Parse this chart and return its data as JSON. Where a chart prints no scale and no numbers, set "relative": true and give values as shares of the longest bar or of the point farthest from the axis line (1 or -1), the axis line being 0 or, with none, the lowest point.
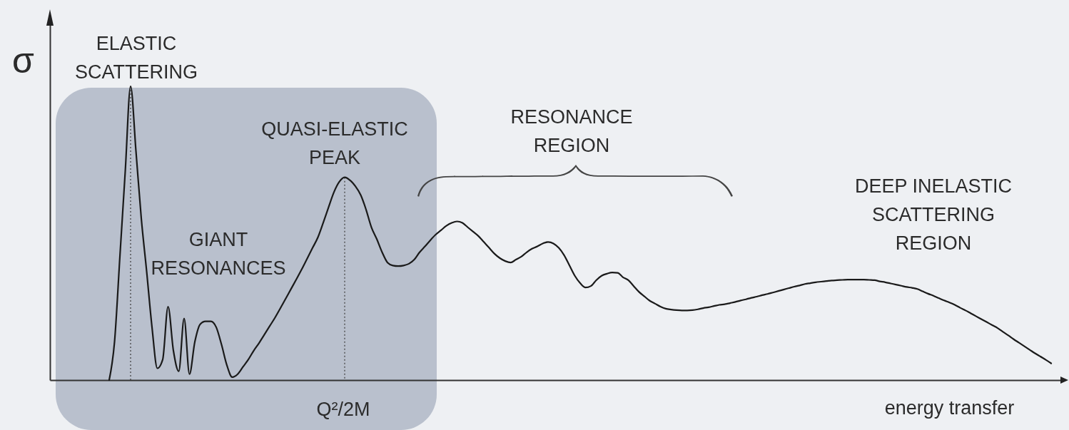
{
  "chart_data": {
    "type": "line",
    "xlabel": "energy transfer",
    "ylabel": "σ",
    "relative": true,
    "color": "#1a1a1a",
    "annotations": [
      "ELASTIC\nSCATTERING",
      "GIANT\nRESONANCES",
      "QUASI-ELASTIC\nPEAK",
      "RESONANCE\nREGION",
      "DEEP INELASTIC\nSCATTERING\nREGION",
      "Q²/2M"
    ],
    "categories": [
      null,
      null,
      null,
      null,
      null,
      null,
      null,
      null,
      null,
      null,
      null,
      null,
      null,
      null,
      null,
      null,
      null,
      null,
      null,
      null,
      null,
      null,
      null,
      null,
      null,
      null,
      null,
      null,
      null,
      null,
      null,
      null,
      null,
      null,
      null,
      null,
      null,
      null,
      null,
      null,
      null,
      null,
      null,
      null,
      null,
      null,
      null,
      null,
      null,
      null,
      null,
      null,
      null,
      null,
      null,
      null,
      null,
      null,
      null,
      null,
      null,
      null,
      null,
      null,
      null,
      null,
      null,
      null,
      null,
      null,
      null,
      null,
      null,
      null,
      null,
      null,
      null,
      null,
      null,
      null,
      null,
      null,
      null,
      null,
      null,
      null,
      null,
      null,
      null,
      null,
      null,
      null,
      null,
      null,
      null,
      null,
      null,
      null,
      null,
      null,
      null,
      null,
      null,
      null,
      null,
      null,
      null,
      null,
      null,
      null,
      null,
      null,
      null,
      null,
      null,
      null,
      null,
      null,
      null,
      null,
      null,
      null,
      null,
      null,
      null,
      null,
      null,
      null,
      null,
      null,
      null,
      null,
      null,
      null,
      null,
      null,
      null,
      null,
      null,
      null,
      null,
      null,
      null,
      null,
      null,
      null,
      null,
      null,
      null,
      null,
      null,
      null,
      null,
      null,
      null,
      null,
      null,
      null,
      null,
      null,
      null,
      null,
      null,
      null,
      null,
      null,
      null,
      null,
      null,
      null,
      null,
      null,
      null,
      null,
      null,
      null,
      null
    ],
    "values": [
      0,
      0.13,
      0.42,
      0.71,
      1,
      0.78,
      0.55,
      0.37,
      0.18,
      0.04,
      0.07,
      0.25,
      0.1,
      0.03,
      0.21,
      0.02,
      0.13,
      0.19,
      0.2,
      0.2,
      0.18,
      0.12,
      0.05,
      0.01,
      0.02,
      0.045,
      0.07,
      0.1,
      0.126,
      0.155,
      0.184,
      0.213,
      0.245,
      0.278,
      0.311,
      0.344,
      0.378,
      0.414,
      0.45,
      0.486,
      0.536,
      0.589,
      0.64,
      0.675,
      0.69,
      0.68,
      0.66,
      0.63,
      0.58,
      0.52,
      0.48,
      0.435,
      0.4,
      0.39,
      0.388,
      0.39,
      0.396,
      0.41,
      0.435,
      0.455,
      0.476,
      0.495,
      0.51,
      0.525,
      0.535,
      0.54,
      0.535,
      0.52,
      0.505,
      0.49,
      0.47,
      0.45,
      0.43,
      0.415,
      0.405,
      0.4,
      0.41,
      0.42,
      0.435,
      0.447,
      0.455,
      0.465,
      0.47,
      0.465,
      0.45,
      0.425,
      0.39,
      0.355,
      0.33,
      0.315,
      0.32,
      0.34,
      0.355,
      0.362,
      0.366,
      0.365,
      0.35,
      0.34,
      0.32,
      0.3,
      0.285,
      0.27,
      0.26,
      0.25,
      0.243,
      0.24,
      0.238,
      0.237,
      0.237,
      0.238,
      0.241,
      0.245,
      0.248,
      0.252,
      0.256,
      0.258,
      0.262,
      0.266,
      0.271,
      0.275,
      0.28,
      0.284,
      0.289,
      0.293,
      0.298,
      0.303,
      0.308,
      0.313,
      0.318,
      0.322,
      0.327,
      0.33,
      0.333,
      0.335,
      0.337,
      0.339,
      0.34,
      0.341,
      0.342,
      0.342,
      0.342,
      0.342,
      0.341,
      0.34,
      0.336,
      0.333,
      0.329,
      0.325,
      0.321,
      0.317,
      0.314,
      0.31,
      0.302,
      0.294,
      0.287,
      0.279,
      0.271,
      0.264,
      0.256,
      0.246,
      0.237,
      0.227,
      0.217,
      0.207,
      0.197,
      0.187,
      0.177,
      0.164,
      0.152,
      0.139,
      0.127,
      0.115,
      0.103,
      0.091,
      0.08,
      0.069,
      0.057
    ]
  }
}
